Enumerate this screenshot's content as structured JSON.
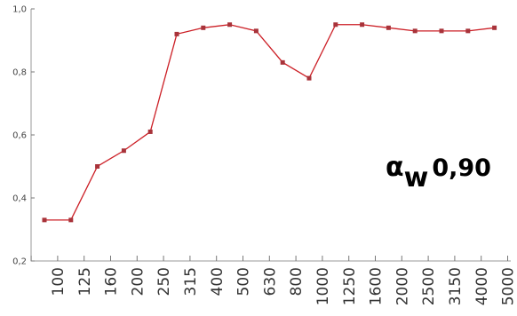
{
  "chart_data": {
    "type": "line",
    "categories": [
      "100",
      "125",
      "160",
      "200",
      "250",
      "315",
      "400",
      "500",
      "630",
      "800",
      "1000",
      "1250",
      "1600",
      "2000",
      "2500",
      "3150",
      "4000",
      "5000"
    ],
    "series": [
      {
        "values": [
          0.33,
          0.33,
          0.5,
          0.55,
          0.61,
          0.92,
          0.94,
          0.95,
          0.93,
          0.83,
          0.78,
          0.95,
          0.95,
          0.94,
          0.93,
          0.93,
          0.93,
          0.94
        ]
      }
    ],
    "ylim": [
      0.2,
      1.0
    ],
    "yticks": [
      "0,2",
      "0,4",
      "0,6",
      "0,8",
      "1,0"
    ],
    "ytick_values": [
      0.2,
      0.4,
      0.6,
      0.8,
      1.0
    ],
    "grid": false,
    "annotation": {
      "symbol": "α",
      "subscript": "w",
      "value": "0,90"
    },
    "colors": {
      "line": "#cc1f26",
      "marker": "#a8333a"
    }
  }
}
